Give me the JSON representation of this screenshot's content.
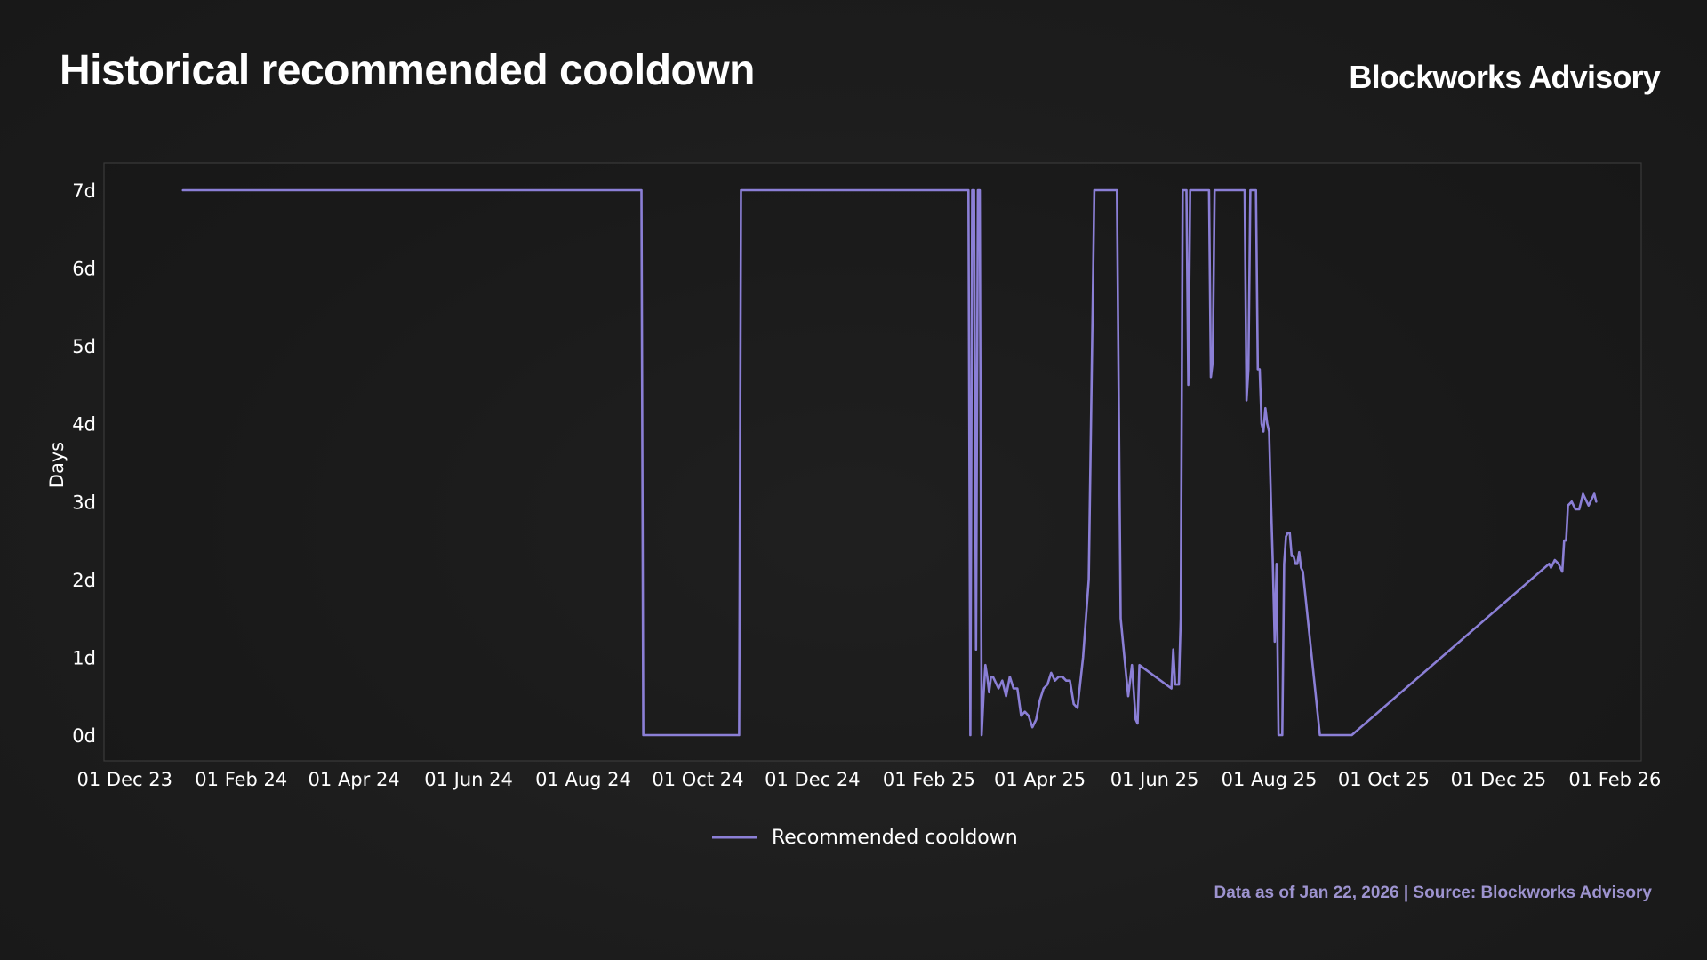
{
  "header": {
    "title": "Historical recommended cooldown",
    "brand": "Blockworks Advisory"
  },
  "footer": {
    "source": "Data as of Jan 22, 2026 | Source: Blockworks Advisory"
  },
  "colors": {
    "line": "#8b7fd6",
    "text": "#ffffff",
    "source": "#9d93cf"
  },
  "chart_data": {
    "type": "line",
    "title": "Historical recommended cooldown",
    "xlabel": "",
    "ylabel": "Days",
    "ylim": [
      0,
      7
    ],
    "y_ticks": [
      0,
      1,
      2,
      3,
      4,
      5,
      6,
      7
    ],
    "y_tick_labels": [
      "0d",
      "1d",
      "2d",
      "3d",
      "4d",
      "5d",
      "6d",
      "7d"
    ],
    "x_range": [
      "2023-11-20",
      "2026-02-15"
    ],
    "x_ticks": [
      "2023-12-01",
      "2024-02-01",
      "2024-04-01",
      "2024-06-01",
      "2024-08-01",
      "2024-10-01",
      "2024-12-01",
      "2025-02-01",
      "2025-04-01",
      "2025-06-01",
      "2025-08-01",
      "2025-10-01",
      "2025-12-01",
      "2026-02-01"
    ],
    "x_tick_labels": [
      "01 Dec 23",
      "01 Feb 24",
      "01 Apr 24",
      "01 Jun 24",
      "01 Aug 24",
      "01 Oct 24",
      "01 Dec 24",
      "01 Feb 25",
      "01 Apr 25",
      "01 Jun 25",
      "01 Aug 25",
      "01 Oct 25",
      "01 Dec 25",
      "01 Feb 26"
    ],
    "grid": false,
    "legend": {
      "position": "bottom-center",
      "label": "Recommended cooldown"
    },
    "series": [
      {
        "name": "Recommended cooldown",
        "x": [
          "2024-01-01",
          "2024-09-01",
          "2024-09-02",
          "2024-10-23",
          "2024-10-24",
          "2025-02-22",
          "2025-02-23",
          "2025-02-24",
          "2025-02-25",
          "2025-02-26",
          "2025-02-27",
          "2025-02-28",
          "2025-03-01",
          "2025-03-02",
          "2025-03-03",
          "2025-03-04",
          "2025-03-05",
          "2025-03-06",
          "2025-03-07",
          "2025-03-08",
          "2025-03-10",
          "2025-03-12",
          "2025-03-14",
          "2025-03-16",
          "2025-03-18",
          "2025-03-20",
          "2025-03-22",
          "2025-03-24",
          "2025-03-26",
          "2025-03-28",
          "2025-03-30",
          "2025-04-01",
          "2025-04-03",
          "2025-04-05",
          "2025-04-07",
          "2025-04-09",
          "2025-04-11",
          "2025-04-13",
          "2025-04-15",
          "2025-04-17",
          "2025-04-19",
          "2025-04-21",
          "2025-04-24",
          "2025-04-27",
          "2025-04-30",
          "2025-05-03",
          "2025-05-06",
          "2025-05-09",
          "2025-05-12",
          "2025-05-14",
          "2025-05-16",
          "2025-05-18",
          "2025-05-20",
          "2025-05-22",
          "2025-05-23",
          "2025-05-24",
          "2025-06-10",
          "2025-06-11",
          "2025-06-12",
          "2025-06-14",
          "2025-06-15",
          "2025-06-16",
          "2025-06-17",
          "2025-06-18",
          "2025-06-19",
          "2025-06-20",
          "2025-06-21",
          "2025-06-23",
          "2025-06-25",
          "2025-06-27",
          "2025-06-28",
          "2025-06-30",
          "2025-07-01",
          "2025-07-02",
          "2025-07-03",
          "2025-07-04",
          "2025-07-05",
          "2025-07-18",
          "2025-07-19",
          "2025-07-20",
          "2025-07-21",
          "2025-07-22",
          "2025-07-25",
          "2025-07-26",
          "2025-07-27",
          "2025-07-28",
          "2025-07-29",
          "2025-07-30",
          "2025-07-31",
          "2025-08-01",
          "2025-08-02",
          "2025-08-03",
          "2025-08-04",
          "2025-08-05",
          "2025-08-06",
          "2025-08-07",
          "2025-08-08",
          "2025-08-09",
          "2025-08-10",
          "2025-08-11",
          "2025-08-12",
          "2025-08-13",
          "2025-08-14",
          "2025-08-15",
          "2025-08-16",
          "2025-08-17",
          "2025-08-18",
          "2025-08-19",
          "2025-08-28",
          "2025-08-29",
          "2025-08-31",
          "2025-09-02",
          "2025-09-04",
          "2025-09-05",
          "2025-09-06",
          "2025-09-08",
          "2025-09-10",
          "2025-09-11",
          "2025-09-12",
          "2025-09-13",
          "2025-09-14",
          "2025-12-28",
          "2025-12-29",
          "2025-12-31",
          "2026-01-02",
          "2026-01-04",
          "2026-01-05",
          "2026-01-06",
          "2026-01-07",
          "2026-01-09",
          "2026-01-10",
          "2026-01-11",
          "2026-01-13",
          "2026-01-14",
          "2026-01-15",
          "2026-01-16",
          "2026-01-17",
          "2026-01-18",
          "2026-01-19",
          "2026-01-20",
          "2026-01-21",
          "2026-01-22"
        ],
        "values": [
          7,
          7,
          0,
          0,
          7,
          7,
          0,
          7,
          7,
          1.1,
          7,
          7,
          0,
          0.5,
          0.9,
          0.75,
          0.55,
          0.75,
          0.75,
          0.7,
          0.6,
          0.7,
          0.5,
          0.75,
          0.6,
          0.6,
          0.25,
          0.3,
          0.25,
          0.1,
          0.2,
          0.45,
          0.6,
          0.65,
          0.8,
          0.7,
          0.75,
          0.75,
          0.7,
          0.7,
          0.4,
          0.35,
          1.0,
          2.0,
          7,
          7,
          7,
          7,
          7,
          1.5,
          1.0,
          0.5,
          0.9,
          0.2,
          0.15,
          0.9,
          0.6,
          1.1,
          0.65,
          0.65,
          1.5,
          7,
          7,
          7,
          4.5,
          7,
          7,
          7,
          7,
          7,
          7,
          7,
          4.6,
          4.8,
          7,
          7,
          7,
          7,
          7,
          4.3,
          4.7,
          7,
          7,
          4.7,
          4.7,
          4.0,
          3.9,
          4.2,
          4.0,
          3.9,
          3.0,
          2.2,
          1.2,
          2.2,
          0,
          0,
          0,
          2.2,
          2.55,
          2.6,
          2.6,
          2.3,
          2.3,
          2.2,
          2.2,
          2.35,
          2.15,
          2.1,
          0,
          0,
          0,
          0,
          0,
          0,
          0,
          0,
          0,
          0,
          0,
          0,
          0,
          2.2,
          2.15,
          2.25,
          2.2,
          2.1,
          2.5,
          2.5,
          2.95,
          3.0,
          2.95,
          2.9,
          2.9,
          3.0,
          3.1,
          3.05,
          3.0,
          2.95,
          3.0,
          3.05,
          3.1,
          3.0
        ]
      }
    ]
  }
}
